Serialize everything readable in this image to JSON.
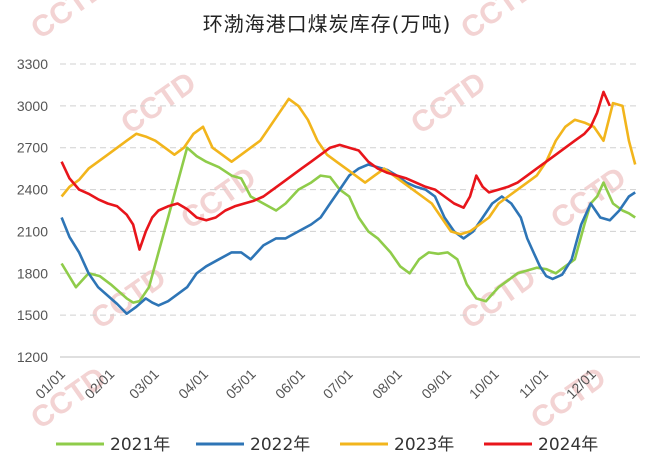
{
  "chart_data": {
    "type": "line",
    "title": "环渤海港口煤炭库存(万吨)",
    "categories": [
      "01/01",
      "02/01",
      "03/01",
      "04/01",
      "05/01",
      "06/01",
      "07/01",
      "08/01",
      "09/01",
      "10/01",
      "11/01",
      "12/01"
    ],
    "ylim": [
      1200,
      3300
    ],
    "yticks": [
      "1200",
      "1500",
      "1800",
      "2100",
      "2400",
      "2700",
      "3000",
      "3300"
    ],
    "grid": "horizontal dashed",
    "legend": "bottom",
    "watermark": "CCTD",
    "series": [
      {
        "name": "2021年",
        "color": "#8fcc4a",
        "x": [
          1,
          10,
          18,
          25,
          32,
          38,
          42,
          46,
          50,
          56,
          62,
          68,
          74,
          80,
          86,
          92,
          100,
          108,
          114,
          120,
          128,
          136,
          142,
          150,
          158,
          164,
          170,
          176,
          182,
          188,
          194,
          200,
          208,
          214,
          220,
          226,
          232,
          238,
          244,
          250,
          256,
          262,
          268,
          272,
          276,
          282,
          288,
          294,
          300,
          306,
          312,
          318,
          324,
          330,
          334,
          338,
          342,
          348,
          354,
          358,
          362
        ],
        "values": [
          1870,
          1700,
          1800,
          1780,
          1720,
          1660,
          1620,
          1590,
          1600,
          1700,
          1950,
          2200,
          2450,
          2700,
          2640,
          2600,
          2560,
          2500,
          2480,
          2350,
          2300,
          2250,
          2300,
          2400,
          2450,
          2500,
          2490,
          2400,
          2350,
          2200,
          2100,
          2050,
          1950,
          1850,
          1800,
          1900,
          1950,
          1940,
          1950,
          1900,
          1720,
          1620,
          1600,
          1650,
          1700,
          1750,
          1800,
          1820,
          1840,
          1830,
          1800,
          1850,
          1900,
          2150,
          2300,
          2350,
          2450,
          2300,
          2250,
          2230,
          2200
        ]
      },
      {
        "name": "2022年",
        "color": "#2e75b6",
        "x": [
          1,
          6,
          12,
          18,
          24,
          30,
          36,
          42,
          48,
          54,
          58,
          62,
          68,
          74,
          80,
          86,
          92,
          100,
          108,
          114,
          120,
          128,
          136,
          142,
          150,
          158,
          164,
          170,
          176,
          182,
          188,
          194,
          200,
          206,
          212,
          218,
          224,
          230,
          236,
          242,
          248,
          254,
          260,
          266,
          272,
          278,
          284,
          290,
          294,
          298,
          302,
          306,
          310,
          316,
          322,
          328,
          334,
          340,
          346,
          352,
          358,
          362
        ],
        "values": [
          2200,
          2060,
          1950,
          1800,
          1700,
          1640,
          1580,
          1510,
          1560,
          1620,
          1590,
          1570,
          1600,
          1650,
          1700,
          1800,
          1850,
          1900,
          1950,
          1950,
          1900,
          2000,
          2050,
          2050,
          2100,
          2150,
          2200,
          2300,
          2400,
          2500,
          2550,
          2580,
          2560,
          2540,
          2500,
          2450,
          2420,
          2400,
          2350,
          2200,
          2100,
          2050,
          2100,
          2200,
          2300,
          2350,
          2300,
          2200,
          2050,
          1950,
          1850,
          1780,
          1760,
          1790,
          1900,
          2150,
          2300,
          2200,
          2180,
          2250,
          2350,
          2380
        ]
      },
      {
        "name": "2023年",
        "color": "#f2b51c",
        "x": [
          1,
          6,
          12,
          18,
          24,
          30,
          36,
          42,
          48,
          54,
          60,
          66,
          72,
          78,
          84,
          90,
          96,
          102,
          108,
          114,
          120,
          126,
          132,
          138,
          144,
          150,
          156,
          162,
          168,
          174,
          180,
          186,
          192,
          198,
          204,
          210,
          216,
          222,
          228,
          234,
          240,
          246,
          252,
          258,
          264,
          270,
          276,
          282,
          288,
          294,
          300,
          306,
          312,
          318,
          324,
          330,
          336,
          342,
          348,
          354,
          358,
          362
        ],
        "values": [
          2350,
          2420,
          2470,
          2550,
          2600,
          2650,
          2700,
          2750,
          2800,
          2780,
          2750,
          2700,
          2650,
          2700,
          2800,
          2850,
          2700,
          2650,
          2600,
          2650,
          2700,
          2750,
          2850,
          2950,
          3050,
          3000,
          2900,
          2750,
          2650,
          2600,
          2550,
          2500,
          2450,
          2500,
          2550,
          2500,
          2450,
          2400,
          2350,
          2300,
          2200,
          2100,
          2080,
          2100,
          2150,
          2200,
          2300,
          2350,
          2400,
          2450,
          2500,
          2600,
          2750,
          2850,
          2900,
          2880,
          2850,
          2750,
          3020,
          3000,
          2750,
          2580
        ]
      },
      {
        "name": "2024年",
        "color": "#e8151b",
        "x": [
          1,
          6,
          12,
          18,
          24,
          30,
          36,
          42,
          46,
          50,
          54,
          58,
          62,
          68,
          74,
          80,
          86,
          92,
          98,
          104,
          110,
          116,
          122,
          128,
          134,
          140,
          146,
          152,
          158,
          164,
          170,
          176,
          182,
          188,
          194,
          200,
          206,
          212,
          218,
          224,
          230,
          236,
          242,
          248,
          254,
          258,
          262,
          266,
          270,
          276,
          282,
          288,
          294,
          300,
          306,
          312,
          318,
          324,
          330,
          334,
          338,
          342,
          346
        ],
        "values": [
          2600,
          2480,
          2400,
          2370,
          2330,
          2300,
          2280,
          2220,
          2150,
          1970,
          2100,
          2200,
          2250,
          2280,
          2300,
          2260,
          2200,
          2180,
          2200,
          2250,
          2280,
          2300,
          2320,
          2350,
          2400,
          2450,
          2500,
          2550,
          2600,
          2650,
          2700,
          2720,
          2700,
          2680,
          2600,
          2550,
          2520,
          2500,
          2480,
          2450,
          2420,
          2400,
          2350,
          2300,
          2270,
          2350,
          2500,
          2420,
          2380,
          2400,
          2420,
          2450,
          2500,
          2550,
          2600,
          2650,
          2700,
          2750,
          2800,
          2850,
          2950,
          3100,
          3000
        ]
      }
    ]
  }
}
